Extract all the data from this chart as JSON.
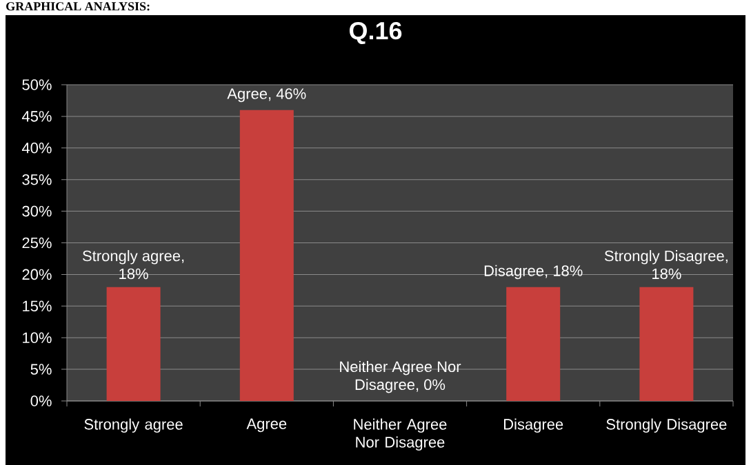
{
  "chart_data": {
    "type": "bar",
    "title": "Q.16",
    "annotations": [
      "GRAPHICAL ANALYSIS:"
    ],
    "categories": [
      "Strongly agree",
      "Agree",
      "Neither Agree Nor Disagree",
      "Disagree",
      "Strongly Disagree"
    ],
    "values": [
      18,
      46,
      0,
      18,
      18
    ],
    "color": "#c83f3c",
    "value_labels": [
      "Strongly agree, 18%",
      "Agree, 46%",
      "Neither Agree Nor Disagree, 0%",
      "Disagree, 18%",
      "Strongly Disagree, 18%"
    ],
    "ylim": [
      0,
      50
    ],
    "yticks": [
      {
        "value": 0,
        "label": "0%"
      },
      {
        "value": 5,
        "label": "5%"
      },
      {
        "value": 10,
        "label": "10%"
      },
      {
        "value": 15,
        "label": "15%"
      },
      {
        "value": 20,
        "label": "20%"
      },
      {
        "value": 25,
        "label": "25%"
      },
      {
        "value": 30,
        "label": "30%"
      },
      {
        "value": 35,
        "label": "35%"
      },
      {
        "value": 40,
        "label": "40%"
      },
      {
        "value": 45,
        "label": "45%"
      },
      {
        "value": 50,
        "label": "50%"
      }
    ],
    "grid": "y"
  }
}
